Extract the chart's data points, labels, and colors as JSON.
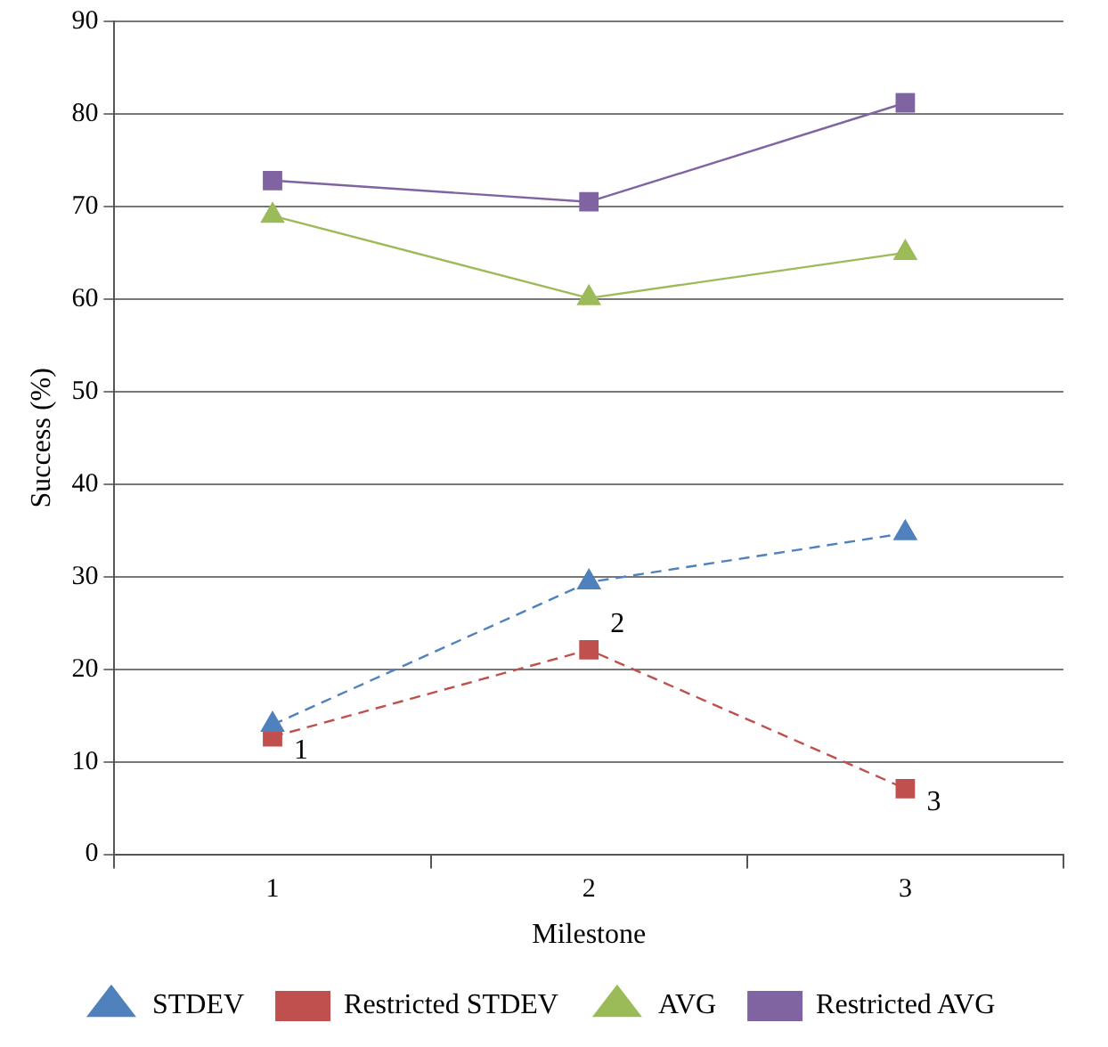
{
  "chart_data": {
    "type": "line",
    "xlabel": "Milestone",
    "ylabel": "Success (%)",
    "categories": [
      "1",
      "2",
      "3"
    ],
    "ylim": [
      0,
      90
    ],
    "yticks": [
      0,
      10,
      20,
      30,
      40,
      50,
      60,
      70,
      80,
      90
    ],
    "grid": "y",
    "legend": "bottom",
    "series": [
      {
        "name": "STDEV",
        "color": "#4f81bd",
        "values": [
          14,
          29.4,
          34.7
        ],
        "marker": "triangle",
        "line_style": "dashed"
      },
      {
        "name": "Restricted STDEV",
        "color": "#c0504d",
        "values": [
          12.7,
          22.1,
          7.1
        ],
        "marker": "square",
        "line_style": "dashed"
      },
      {
        "name": "AVG",
        "color": "#9bbb59",
        "values": [
          69,
          60.1,
          65
        ],
        "marker": "triangle",
        "line_style": "solid"
      },
      {
        "name": "Restricted AVG",
        "color": "#8064a2",
        "values": [
          72.8,
          70.5,
          81.2
        ],
        "marker": "square",
        "line_style": "solid"
      }
    ],
    "annotations": [
      {
        "text": "1",
        "x": "1",
        "y": 12.7
      },
      {
        "text": "2",
        "x": "2",
        "y": 22.1
      },
      {
        "text": "3",
        "x": "3",
        "y": 7.1
      }
    ]
  }
}
